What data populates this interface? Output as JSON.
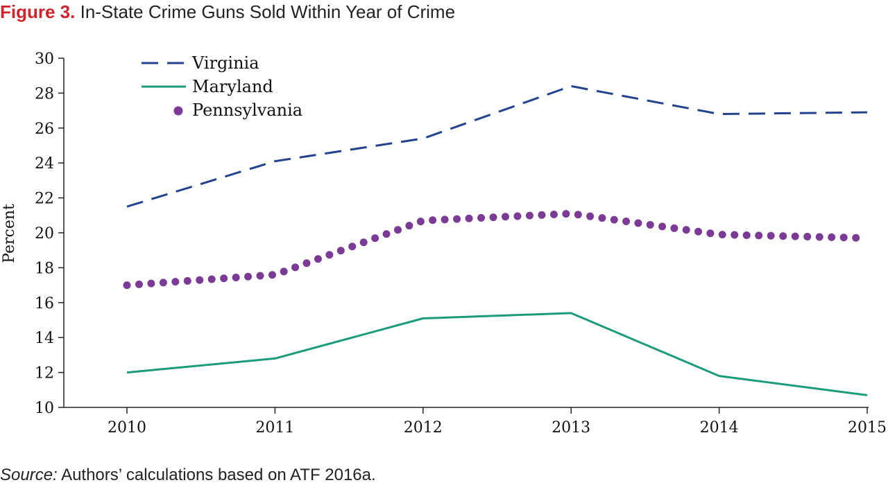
{
  "header": {
    "figure_number": "Figure 3.",
    "title": "In-State Crime Guns Sold Within Year of Crime"
  },
  "source": {
    "label": "Source:",
    "text": "Authors’ calculations based on ATF 2016a."
  },
  "chart_data": {
    "type": "line",
    "title": "In-State Crime Guns Sold Within Year of Crime",
    "xlabel": "",
    "ylabel": "Percent",
    "x": [
      2010,
      2011,
      2012,
      2013,
      2014,
      2015
    ],
    "ylim": [
      10,
      30
    ],
    "yticks": [
      10,
      12,
      14,
      16,
      18,
      20,
      22,
      24,
      26,
      28,
      30
    ],
    "grid": false,
    "legend_position": "top-left",
    "series": [
      {
        "name": "Virginia",
        "style": "dashed",
        "color": "#22418f",
        "values": [
          21.5,
          24.1,
          25.4,
          28.4,
          26.8,
          26.9
        ]
      },
      {
        "name": "Maryland",
        "style": "solid",
        "color": "#199b7c",
        "values": [
          12.0,
          12.8,
          15.1,
          15.4,
          11.8,
          10.7
        ]
      },
      {
        "name": "Pennsylvania",
        "style": "dotted",
        "color": "#7b3a96",
        "values": [
          17.0,
          17.6,
          20.7,
          21.1,
          19.9,
          19.7
        ]
      }
    ]
  }
}
